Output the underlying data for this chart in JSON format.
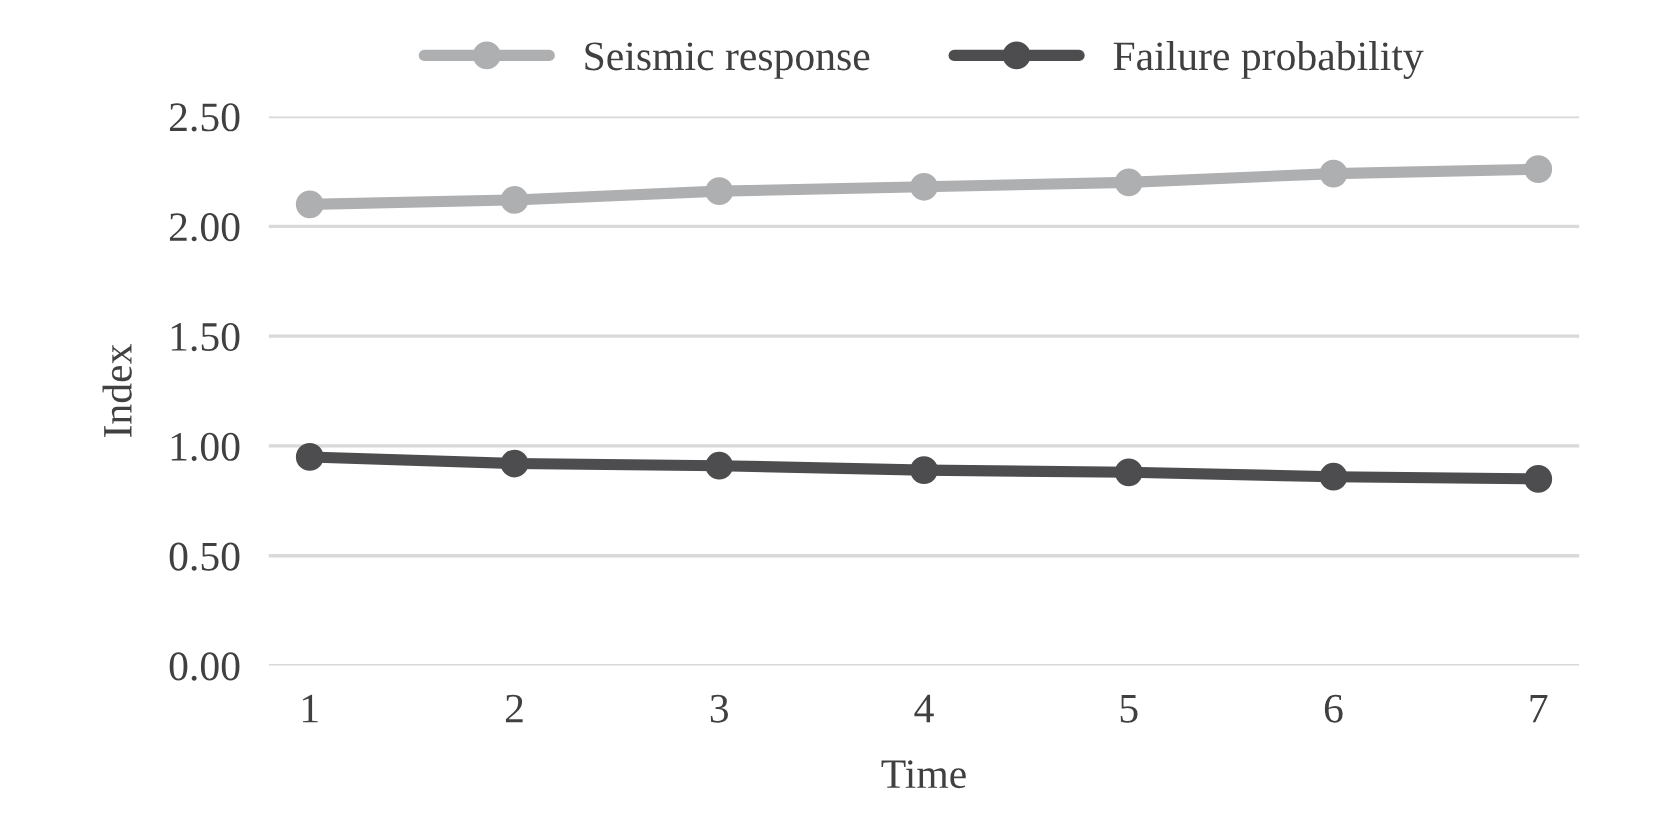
{
  "chart_data": {
    "type": "line",
    "xlabel": "Time",
    "ylabel": "Index",
    "categories": [
      "1",
      "2",
      "3",
      "4",
      "5",
      "6",
      "7"
    ],
    "series": [
      {
        "name": "Seismic response",
        "color": "#aeafb1",
        "values": [
          2.1,
          2.12,
          2.16,
          2.18,
          2.2,
          2.24,
          2.26
        ]
      },
      {
        "name": "Failure probability",
        "color": "#4d4d4f",
        "values": [
          0.95,
          0.92,
          0.91,
          0.89,
          0.88,
          0.86,
          0.85
        ]
      }
    ],
    "ylim": [
      0,
      2.5
    ],
    "yticks": [
      {
        "value": 0,
        "label": "0.00"
      },
      {
        "value": 0.5,
        "label": "0.50"
      },
      {
        "value": 1,
        "label": "1.00"
      },
      {
        "value": 1.5,
        "label": "1.50"
      },
      {
        "value": 2,
        "label": "2.00"
      },
      {
        "value": 2.5,
        "label": "2.50"
      }
    ],
    "grid": "y",
    "legend": "top",
    "marker": "circle",
    "line_style": "solid"
  }
}
